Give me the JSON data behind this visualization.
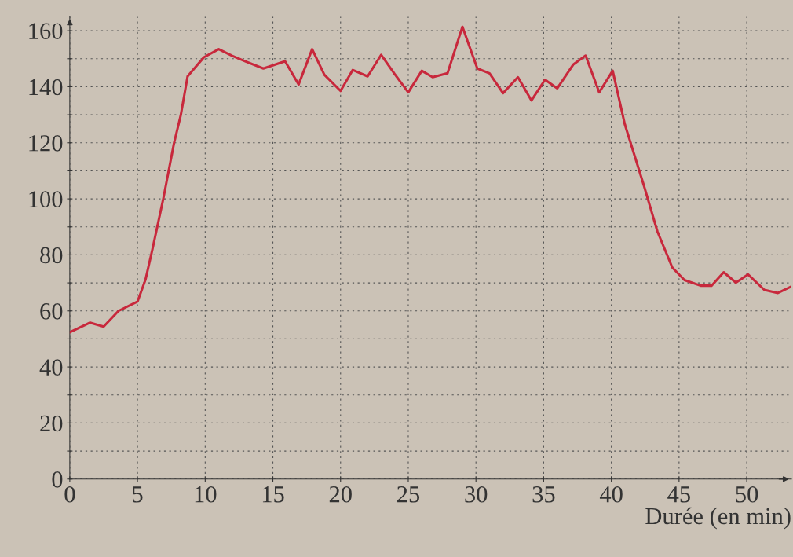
{
  "chart_data": {
    "type": "line",
    "xlabel": "Durée (en min)",
    "x": [
      0,
      1.5,
      2.5,
      3.6,
      5.0,
      5.6,
      6.1,
      6.9,
      7.7,
      8.2,
      8.7,
      9.9,
      11,
      12,
      13,
      14.3,
      15.9,
      16.9,
      17.9,
      18.8,
      20,
      20.9,
      22,
      23,
      24,
      25,
      26,
      26.8,
      27.9,
      29,
      30.1,
      31,
      32,
      33.1,
      34.1,
      35.1,
      36,
      37.2,
      38.1,
      39.1,
      40.1,
      41,
      42.4,
      43.4,
      44.5,
      45.4,
      46.6,
      47.4,
      48.3,
      49.2,
      50.1,
      51.3,
      52.3,
      53.2
    ],
    "series": [
      {
        "color": "#c8283c",
        "values": [
          52.4,
          55.8,
          54.4,
          60,
          63.3,
          71.3,
          81.9,
          99.9,
          119.9,
          129.9,
          143.7,
          150.5,
          153.4,
          151,
          149,
          146.5,
          149.1,
          140.8,
          153.4,
          144.3,
          138.5,
          146,
          143.7,
          151.4,
          144.5,
          138,
          145.7,
          143.4,
          144.8,
          161.4,
          146.5,
          144.8,
          137.7,
          143.4,
          135.1,
          142.5,
          139.4,
          148,
          151.1,
          138,
          145.7,
          126.5,
          104.8,
          88.4,
          75.5,
          71,
          69,
          69,
          73.8,
          70.1,
          73,
          67.5,
          66.4,
          68.5
        ]
      }
    ],
    "xlim": [
      0,
      53.3
    ],
    "ylim": [
      0,
      165
    ],
    "xticks": [
      0,
      5,
      10,
      15,
      20,
      25,
      30,
      35,
      40,
      45,
      50
    ],
    "yticks": [
      0,
      {
        "value": 10,
        "label": null
      },
      20,
      {
        "value": 30,
        "label": null
      },
      40,
      {
        "value": 50,
        "label": null
      },
      60,
      {
        "value": 70,
        "label": null
      },
      80,
      {
        "value": 90,
        "label": null
      },
      100,
      {
        "value": 110,
        "label": null
      },
      120,
      {
        "value": 130,
        "label": null
      },
      140,
      {
        "value": 150,
        "label": null
      },
      160
    ],
    "grid": true,
    "marker": "none",
    "line_style": "solid"
  }
}
